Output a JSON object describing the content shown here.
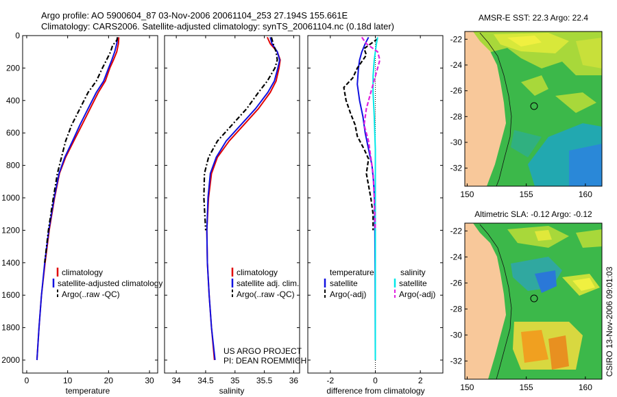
{
  "header": {
    "line1": "Argo profile: AO 5900604_87 03-Nov-2006 20061104_253 27.194S 155.661E",
    "line2": "Climatology: CARS2006. Satellite-adjusted climatology: synTS_20061104.nc (0.18d later)"
  },
  "footer": {
    "project": "US ARGO PROJECT",
    "pi": "PI: DEAN ROEMMICH",
    "stamp": "CSIRO 13-Nov-2006 09:01:03"
  },
  "colors": {
    "clim": "#e00000",
    "sat": "#1010e0",
    "argo": "#000000",
    "sal_sat": "#00e8e8",
    "sal_argo": "#e020e0",
    "land": "#f8c89a",
    "ocean_green": "#3cb84a"
  },
  "chart_data": [
    {
      "type": "line",
      "name": "temperature-panel",
      "xlabel": "temperature",
      "ylabel": "",
      "xlim": [
        -1,
        32
      ],
      "ylim": [
        2080,
        0
      ],
      "xticks": [
        0,
        10,
        20,
        30
      ],
      "yticks": [
        0,
        200,
        400,
        600,
        800,
        1000,
        1200,
        1400,
        1600,
        1800,
        2000
      ],
      "legend": [
        "climatology",
        "satellite-adjusted climatology",
        "Argo(..raw -QC)"
      ],
      "series": [
        {
          "name": "climatology",
          "style": "solid",
          "color": "clim",
          "points": [
            [
              22.5,
              10
            ],
            [
              22.4,
              50
            ],
            [
              22.0,
              100
            ],
            [
              21.2,
              150
            ],
            [
              20.3,
              200
            ],
            [
              19.2,
              280
            ],
            [
              17.5,
              350
            ],
            [
              15.5,
              450
            ],
            [
              13.5,
              550
            ],
            [
              11.5,
              650
            ],
            [
              9.5,
              750
            ],
            [
              8.0,
              850
            ],
            [
              6.8,
              1000
            ],
            [
              5.5,
              1200
            ],
            [
              4.5,
              1400
            ],
            [
              3.6,
              1600
            ],
            [
              3.0,
              1800
            ],
            [
              2.5,
              2000
            ]
          ]
        },
        {
          "name": "satellite-adjusted climatology",
          "style": "solid",
          "color": "sat",
          "points": [
            [
              22.2,
              10
            ],
            [
              22.0,
              50
            ],
            [
              21.5,
              100
            ],
            [
              20.8,
              150
            ],
            [
              20.0,
              200
            ],
            [
              18.8,
              280
            ],
            [
              17.0,
              350
            ],
            [
              15.0,
              450
            ],
            [
              13.0,
              550
            ],
            [
              11.2,
              650
            ],
            [
              9.3,
              750
            ],
            [
              7.9,
              850
            ],
            [
              6.7,
              1000
            ],
            [
              5.4,
              1200
            ],
            [
              4.4,
              1400
            ],
            [
              3.6,
              1600
            ],
            [
              3.0,
              1800
            ],
            [
              2.5,
              2000
            ]
          ]
        },
        {
          "name": "Argo(..raw -QC)",
          "style": "dashdot",
          "color": "argo",
          "points": [
            [
              22.2,
              10
            ],
            [
              22.0,
              30
            ],
            [
              21.0,
              60
            ],
            [
              20.5,
              100
            ],
            [
              19.5,
              150
            ],
            [
              18.5,
              200
            ],
            [
              17.0,
              280
            ],
            [
              15.0,
              350
            ],
            [
              13.0,
              450
            ],
            [
              11.0,
              550
            ],
            [
              9.5,
              650
            ],
            [
              8.5,
              750
            ],
            [
              7.5,
              850
            ],
            [
              6.5,
              1000
            ],
            [
              5.3,
              1200
            ],
            [
              4.4,
              1400
            ]
          ]
        }
      ]
    },
    {
      "type": "line",
      "name": "salinity-panel",
      "xlabel": "salinity",
      "ylabel": "",
      "xlim": [
        33.8,
        36.1
      ],
      "ylim": [
        2080,
        0
      ],
      "xticks": [
        34,
        34.5,
        35,
        35.5,
        36
      ],
      "xticklabels": [
        "34",
        "34.5",
        "35",
        "35.5",
        "36"
      ],
      "legend": [
        "climatology",
        "satellite adj. clim.",
        "Argo(..raw -QC)"
      ],
      "series": [
        {
          "name": "climatology",
          "style": "solid",
          "color": "clim",
          "points": [
            [
              35.55,
              10
            ],
            [
              35.6,
              50
            ],
            [
              35.72,
              100
            ],
            [
              35.77,
              150
            ],
            [
              35.75,
              200
            ],
            [
              35.7,
              280
            ],
            [
              35.6,
              350
            ],
            [
              35.4,
              450
            ],
            [
              35.15,
              550
            ],
            [
              34.9,
              650
            ],
            [
              34.7,
              750
            ],
            [
              34.6,
              850
            ],
            [
              34.55,
              1000
            ],
            [
              34.52,
              1200
            ],
            [
              34.53,
              1400
            ],
            [
              34.56,
              1600
            ],
            [
              34.6,
              1800
            ],
            [
              34.65,
              2000
            ]
          ]
        },
        {
          "name": "satellite adj. clim.",
          "style": "solid",
          "color": "sat",
          "points": [
            [
              35.6,
              10
            ],
            [
              35.63,
              50
            ],
            [
              35.72,
              100
            ],
            [
              35.76,
              150
            ],
            [
              35.73,
              200
            ],
            [
              35.67,
              280
            ],
            [
              35.56,
              350
            ],
            [
              35.35,
              450
            ],
            [
              35.1,
              550
            ],
            [
              34.85,
              650
            ],
            [
              34.68,
              750
            ],
            [
              34.58,
              850
            ],
            [
              34.54,
              1000
            ],
            [
              34.52,
              1200
            ],
            [
              34.53,
              1400
            ],
            [
              34.56,
              1600
            ],
            [
              34.6,
              1800
            ],
            [
              34.66,
              2000
            ]
          ]
        },
        {
          "name": "Argo(..raw -QC)",
          "style": "dashdot",
          "color": "argo",
          "points": [
            [
              35.62,
              10
            ],
            [
              35.65,
              50
            ],
            [
              35.7,
              100
            ],
            [
              35.72,
              150
            ],
            [
              35.68,
              200
            ],
            [
              35.55,
              280
            ],
            [
              35.4,
              350
            ],
            [
              35.2,
              450
            ],
            [
              34.95,
              550
            ],
            [
              34.7,
              650
            ],
            [
              34.55,
              750
            ],
            [
              34.48,
              850
            ],
            [
              34.47,
              1000
            ],
            [
              34.5,
              1200
            ]
          ]
        }
      ]
    },
    {
      "type": "line",
      "name": "difference-panel",
      "xlabel": "difference from climatology",
      "ylabel": "",
      "xlim": [
        -3,
        3
      ],
      "ylim": [
        2080,
        0
      ],
      "xticks": [
        -2,
        0,
        2
      ],
      "reference_line": 0,
      "legend_titles": [
        "temperature",
        "salinity"
      ],
      "legend": [
        "satellite",
        "Argo(-adj)",
        "satellite",
        "Argo(-adj)"
      ],
      "series": [
        {
          "name": "temperature satellite",
          "style": "solid",
          "color": "sat",
          "points": [
            [
              -0.3,
              10
            ],
            [
              -0.45,
              50
            ],
            [
              -0.6,
              100
            ],
            [
              -0.7,
              150
            ],
            [
              -0.75,
              200
            ],
            [
              -0.8,
              300
            ],
            [
              -0.7,
              400
            ],
            [
              -0.55,
              500
            ],
            [
              -0.45,
              600
            ],
            [
              -0.3,
              700
            ],
            [
              -0.15,
              800
            ],
            [
              -0.08,
              900
            ],
            [
              -0.04,
              1000
            ],
            [
              -0.02,
              1200
            ],
            [
              -0.01,
              1500
            ],
            [
              0,
              2000
            ]
          ]
        },
        {
          "name": "temperature Argo(-adj)",
          "style": "dashed",
          "color": "argo",
          "points": [
            [
              0.1,
              20
            ],
            [
              -0.1,
              40
            ],
            [
              -0.5,
              80
            ],
            [
              -0.4,
              120
            ],
            [
              -0.6,
              160
            ],
            [
              -0.8,
              200
            ],
            [
              -1.0,
              260
            ],
            [
              -1.4,
              320
            ],
            [
              -1.3,
              400
            ],
            [
              -1.1,
              480
            ],
            [
              -0.9,
              550
            ],
            [
              -0.8,
              620
            ],
            [
              -0.5,
              700
            ],
            [
              -0.3,
              760
            ],
            [
              -0.4,
              850
            ],
            [
              -0.2,
              1000
            ],
            [
              -0.1,
              1100
            ],
            [
              -0.1,
              1200
            ]
          ]
        },
        {
          "name": "salinity satellite",
          "style": "solid",
          "color": "sal_sat",
          "points": [
            [
              0.1,
              10
            ],
            [
              0.05,
              50
            ],
            [
              0.0,
              100
            ],
            [
              -0.05,
              150
            ],
            [
              -0.1,
              250
            ],
            [
              -0.1,
              350
            ],
            [
              -0.05,
              500
            ],
            [
              0,
              700
            ],
            [
              0,
              1000
            ],
            [
              0,
              1500
            ],
            [
              0,
              2000
            ]
          ]
        },
        {
          "name": "salinity Argo(-adj)",
          "style": "dashed",
          "color": "sal_argo",
          "points": [
            [
              -0.6,
              10
            ],
            [
              -0.4,
              50
            ],
            [
              0.1,
              100
            ],
            [
              0.2,
              150
            ],
            [
              0.0,
              250
            ],
            [
              -0.2,
              350
            ],
            [
              -0.4,
              450
            ],
            [
              -0.5,
              550
            ],
            [
              -0.3,
              650
            ],
            [
              -0.2,
              750
            ],
            [
              -0.1,
              850
            ],
            [
              -0.05,
              1000
            ],
            [
              0,
              1200
            ]
          ]
        }
      ]
    },
    {
      "type": "heatmap",
      "name": "amsr-e-map",
      "title": "AMSR-E SST: 22.3 Argo: 22.4",
      "xlim": [
        149.8,
        161.4
      ],
      "ylim": [
        -33.4,
        -21.4
      ],
      "xticks": [
        150,
        155,
        160
      ],
      "yticks": [
        -22,
        -24,
        -26,
        -28,
        -30,
        -32
      ],
      "profile_location": [
        155.66,
        -27.19
      ]
    },
    {
      "type": "heatmap",
      "name": "altimetric-sla-map",
      "title": "Altimetric SLA: -0.12 Argo: -0.12",
      "xlim": [
        149.8,
        161.4
      ],
      "ylim": [
        -33.4,
        -21.4
      ],
      "xticks": [
        150,
        155,
        160
      ],
      "yticks": [
        -22,
        -24,
        -26,
        -28,
        -30,
        -32
      ],
      "profile_location": [
        155.66,
        -27.19
      ]
    }
  ]
}
